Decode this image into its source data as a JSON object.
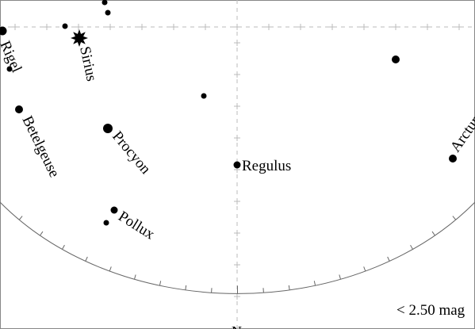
{
  "map": {
    "magnitude_limit": "< 2.50 mag",
    "compass_north": "N",
    "stars": [
      {
        "id": "rigel",
        "name": "Rigel"
      },
      {
        "id": "sirius",
        "name": "Sirius"
      },
      {
        "id": "betelgeuse",
        "name": "Betelgeuse"
      },
      {
        "id": "procyon",
        "name": "Procyon"
      },
      {
        "id": "regulus",
        "name": "Regulus"
      },
      {
        "id": "pollux",
        "name": "Pollux"
      },
      {
        "id": "arcturus",
        "name": "Arcturus"
      }
    ]
  }
}
